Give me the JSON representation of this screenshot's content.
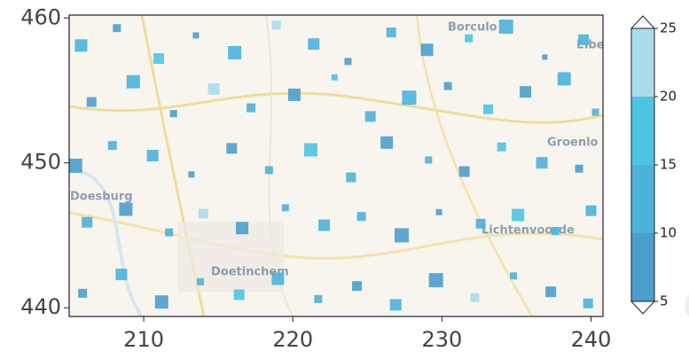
{
  "chart_data": {
    "type": "scatter",
    "xlim": [
      205,
      240.8
    ],
    "ylim": [
      439.4,
      460.2
    ],
    "xticks": [
      210,
      220,
      230,
      240
    ],
    "yticks": [
      440,
      450,
      460
    ],
    "marker": "square",
    "places": [
      "Borculo",
      "Eibe",
      "Groenlo",
      "Doesburg",
      "Lichtenvoorde",
      "Doetinchem"
    ],
    "x": [
      205.8,
      208.2,
      211.0,
      213.5,
      216.1,
      218.9,
      221.4,
      223.7,
      226.6,
      229.0,
      231.8,
      234.3,
      236.9,
      239.5,
      206.5,
      209.3,
      212.0,
      214.7,
      217.2,
      220.1,
      222.8,
      225.2,
      227.8,
      230.4,
      233.1,
      235.6,
      238.2,
      240.3,
      205.4,
      207.9,
      210.6,
      213.2,
      215.9,
      218.4,
      221.2,
      223.9,
      226.3,
      229.1,
      231.5,
      234.0,
      236.7,
      239.2,
      206.2,
      208.8,
      211.7,
      214.0,
      216.6,
      219.5,
      222.1,
      224.6,
      227.3,
      229.8,
      232.6,
      235.1,
      237.6,
      240.0,
      205.9,
      208.5,
      211.2,
      213.8,
      216.4,
      219.0,
      221.7,
      224.3,
      226.9,
      229.6,
      232.2,
      234.8,
      237.3,
      239.8
    ],
    "y": [
      458.1,
      459.3,
      457.2,
      458.8,
      457.6,
      459.5,
      458.2,
      457.0,
      459.0,
      457.8,
      458.6,
      459.4,
      457.3,
      458.5,
      454.2,
      455.6,
      453.4,
      455.1,
      453.8,
      454.7,
      455.9,
      453.2,
      454.5,
      455.3,
      453.7,
      454.9,
      455.8,
      453.5,
      449.8,
      451.2,
      450.5,
      449.2,
      451.0,
      449.5,
      450.9,
      449.0,
      451.4,
      450.2,
      449.4,
      451.1,
      450.0,
      449.6,
      445.9,
      446.8,
      445.2,
      446.5,
      445.5,
      446.9,
      445.7,
      446.3,
      445.0,
      446.6,
      445.8,
      446.4,
      445.3,
      446.7,
      441.0,
      442.3,
      440.4,
      441.8,
      440.9,
      442.0,
      440.6,
      441.5,
      440.2,
      441.9,
      440.7,
      442.2,
      441.1,
      440.3
    ],
    "values": [
      12,
      8,
      17,
      9,
      13,
      21,
      11,
      7,
      14,
      9,
      18,
      12,
      8,
      10,
      9,
      13,
      7,
      22,
      11,
      8,
      15,
      10,
      12,
      6,
      19,
      9,
      13,
      11,
      8,
      11,
      14,
      9,
      7,
      12,
      18,
      10,
      8,
      13,
      9,
      16,
      11,
      7,
      13,
      9,
      12,
      20,
      8,
      11,
      10,
      14,
      9,
      7,
      12,
      18,
      10,
      13,
      9,
      12,
      8,
      11,
      17,
      10,
      13,
      7,
      12,
      9,
      21,
      11,
      8,
      14
    ],
    "sizes": [
      14,
      9,
      12,
      7,
      15,
      10,
      13,
      8,
      11,
      14,
      9,
      16,
      6,
      12,
      11,
      15,
      8,
      13,
      10,
      14,
      7,
      12,
      16,
      9,
      11,
      13,
      15,
      8,
      16,
      10,
      13,
      7,
      12,
      9,
      15,
      11,
      14,
      8,
      12,
      10,
      13,
      9,
      12,
      15,
      9,
      11,
      14,
      8,
      13,
      10,
      16,
      7,
      11,
      14,
      9,
      12,
      10,
      13,
      15,
      8,
      12,
      14,
      9,
      11,
      13,
      16,
      10,
      8,
      12,
      11
    ],
    "colorbar": {
      "levels": [
        5,
        10,
        15,
        20,
        25
      ],
      "ticks": [
        5,
        10,
        15,
        20,
        25
      ],
      "colors": [
        "#4b9fcc",
        "#4bb3da",
        "#4cc5e1",
        "#a9dbea"
      ],
      "extend": "both"
    }
  }
}
